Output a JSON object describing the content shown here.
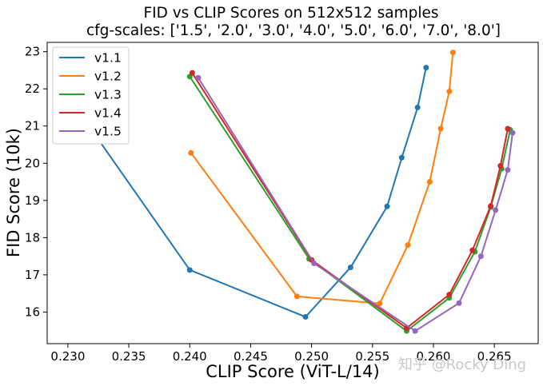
{
  "chart_data": {
    "type": "line",
    "title": "FID vs CLIP Scores on 512x512 samples",
    "subtitle": "cfg-scales: ['1.5', '2.0', '3.0', '4.0', '5.0', '6.0', '7.0', '8.0']",
    "xlabel": "CLIP Score (ViT-L/14)",
    "ylabel": "FID Score (10k)",
    "xlim": [
      0.2283,
      0.2686
    ],
    "ylim": [
      15.15,
      23.25
    ],
    "xticks": [
      0.23,
      0.235,
      0.24,
      0.245,
      0.25,
      0.255,
      0.26,
      0.265
    ],
    "xtick_labels": [
      "0.230",
      "0.235",
      "0.240",
      "0.245",
      "0.250",
      "0.255",
      "0.260",
      "0.265"
    ],
    "yticks": [
      16,
      17,
      18,
      19,
      20,
      21,
      22,
      23
    ],
    "ytick_labels": [
      "16",
      "17",
      "18",
      "19",
      "20",
      "21",
      "22",
      "23"
    ],
    "grid": false,
    "legend_position": "top-left",
    "watermark": "知乎 @Rocky Ding",
    "series": [
      {
        "name": "v1.1",
        "color": "#1f77b4",
        "x": [
          0.2298,
          0.24,
          0.2495,
          0.2532,
          0.2562,
          0.2574,
          0.2587,
          0.2594
        ],
        "y": [
          21.9,
          17.13,
          15.87,
          17.2,
          18.84,
          20.15,
          21.5,
          22.57
        ]
      },
      {
        "name": "v1.2",
        "color": "#ff7f0e",
        "x": [
          0.2401,
          0.2488,
          0.2556,
          0.2579,
          0.2597,
          0.2606,
          0.2613,
          0.2616
        ],
        "y": [
          20.28,
          16.42,
          16.23,
          17.8,
          19.5,
          20.93,
          21.93,
          22.98
        ]
      },
      {
        "name": "v1.3",
        "color": "#2ca02c",
        "x": [
          0.24,
          0.2498,
          0.2578,
          0.2613,
          0.2634,
          0.2647,
          0.2656,
          0.2663
        ],
        "y": [
          22.33,
          17.43,
          15.49,
          16.38,
          17.62,
          18.82,
          19.85,
          20.9
        ]
      },
      {
        "name": "v1.4",
        "color": "#d62728",
        "x": [
          0.2402,
          0.25,
          0.2578,
          0.2613,
          0.2632,
          0.2647,
          0.2655,
          0.2661
        ],
        "y": [
          22.43,
          17.4,
          15.57,
          16.47,
          17.66,
          18.85,
          19.93,
          20.93
        ]
      },
      {
        "name": "v1.5",
        "color": "#9467bd",
        "x": [
          0.2407,
          0.2502,
          0.2585,
          0.2621,
          0.2639,
          0.2651,
          0.2661,
          0.2665
        ],
        "y": [
          22.3,
          17.31,
          15.49,
          16.24,
          17.5,
          18.74,
          19.82,
          20.82
        ]
      }
    ]
  }
}
